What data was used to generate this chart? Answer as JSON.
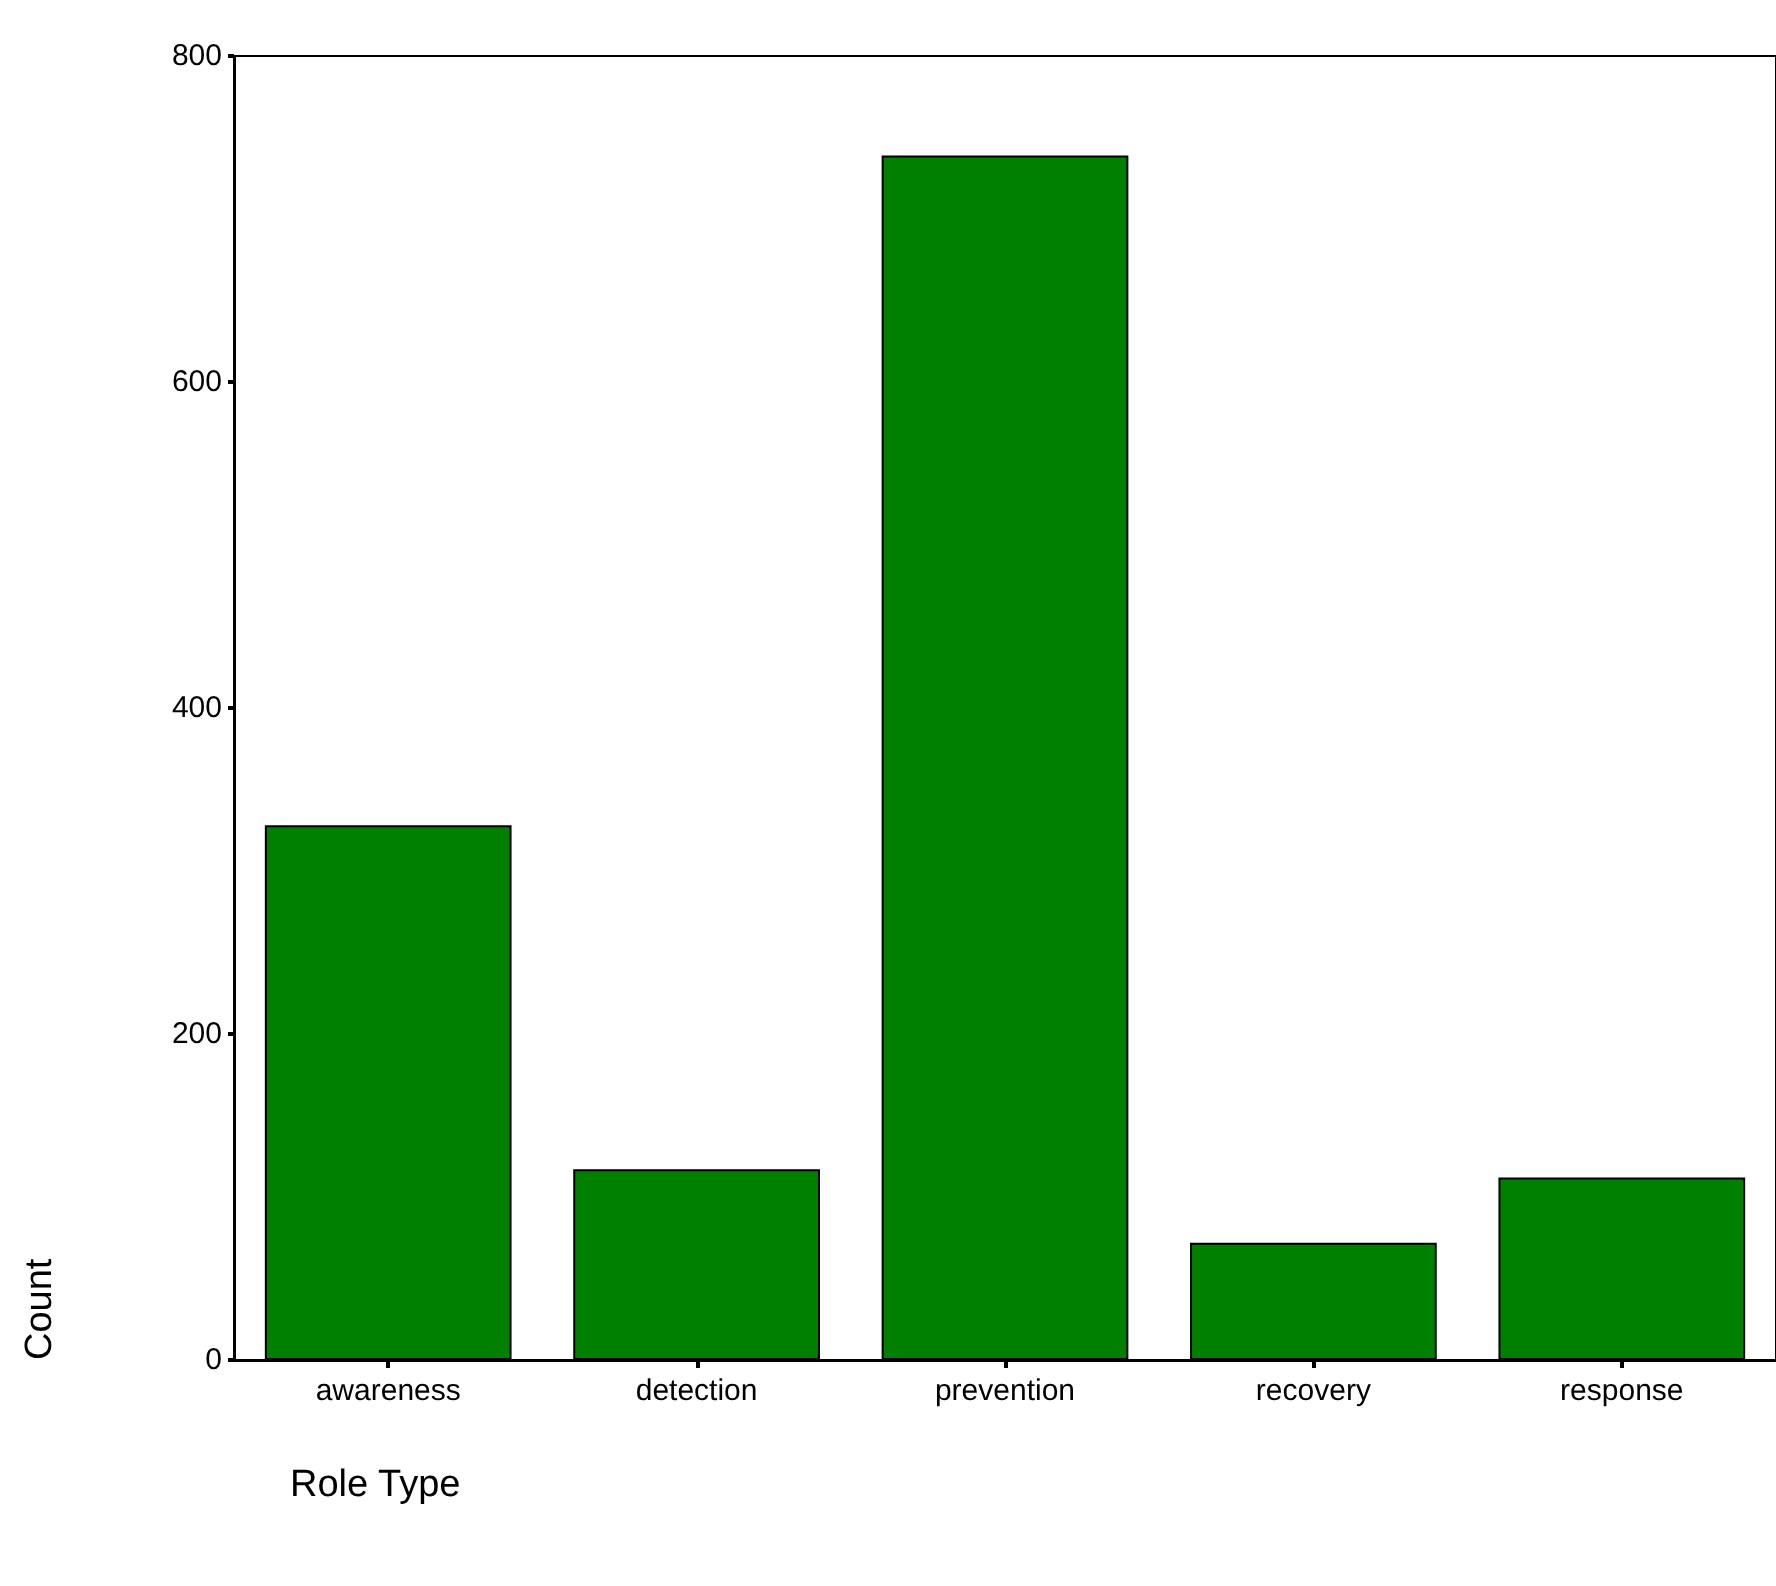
{
  "chart_data": {
    "type": "bar",
    "xlabel": "Role Type",
    "ylabel": "Count",
    "categories": [
      "awareness",
      "detection",
      "prevention",
      "recovery",
      "response"
    ],
    "values": [
      328,
      117,
      739,
      72,
      112
    ],
    "color": "#008000",
    "ylim": [
      0,
      800
    ],
    "yticks": [
      0,
      200,
      400,
      600,
      800
    ],
    "grid": false
  }
}
